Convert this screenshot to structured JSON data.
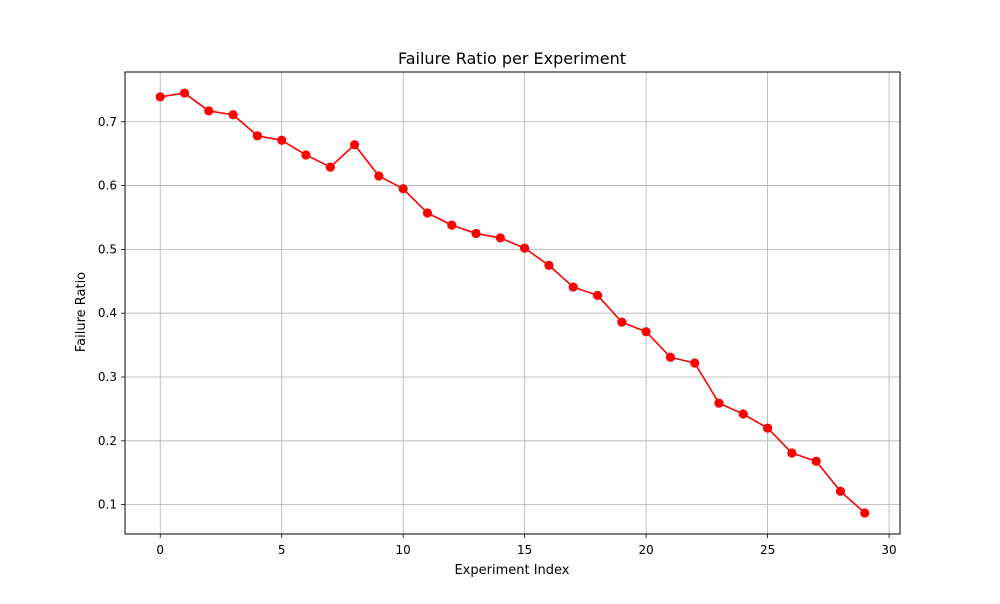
{
  "chart_data": {
    "type": "line",
    "title": "Failure Ratio per Experiment",
    "xlabel": "Experiment Index",
    "ylabel": "Failure Ratio",
    "xlim": [
      -1.45,
      30.45
    ],
    "ylim": [
      0.054,
      0.778
    ],
    "xticks": [
      0,
      5,
      10,
      15,
      20,
      25,
      30
    ],
    "xtick_labels": [
      "0",
      "5",
      "10",
      "15",
      "20",
      "25",
      "30"
    ],
    "yticks": [
      0.1,
      0.2,
      0.3,
      0.4,
      0.5,
      0.6,
      0.7
    ],
    "ytick_labels": [
      "0.1",
      "0.2",
      "0.3",
      "0.4",
      "0.5",
      "0.6",
      "0.7"
    ],
    "grid": true,
    "series": [
      {
        "color": "#ff0000",
        "marker": "circle",
        "x": [
          0,
          1,
          2,
          3,
          4,
          5,
          6,
          7,
          8,
          9,
          10,
          11,
          12,
          13,
          14,
          15,
          16,
          17,
          18,
          19,
          20,
          21,
          22,
          23,
          24,
          25,
          26,
          27,
          28,
          29
        ],
        "values": [
          0.739,
          0.745,
          0.717,
          0.711,
          0.678,
          0.671,
          0.648,
          0.629,
          0.664,
          0.615,
          0.595,
          0.557,
          0.538,
          0.525,
          0.518,
          0.502,
          0.475,
          0.441,
          0.428,
          0.386,
          0.371,
          0.331,
          0.322,
          0.259,
          0.242,
          0.22,
          0.181,
          0.168,
          0.121,
          0.087
        ]
      }
    ]
  }
}
